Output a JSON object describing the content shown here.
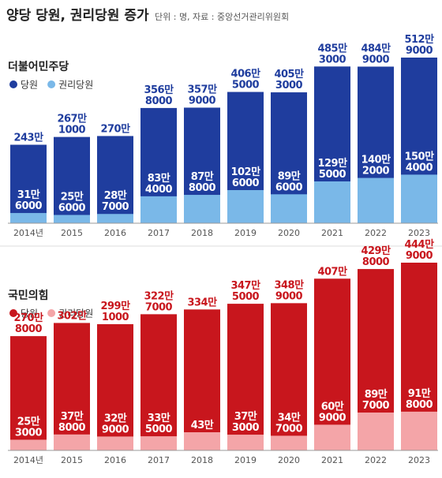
{
  "title": "양당 당원, 권리당원 증가",
  "note": "단위 : 명, 자료 : 중앙선거관리위원회",
  "chart_data": [
    {
      "type": "bar",
      "title": "더불어민주당",
      "categories": [
        "2014년",
        "2015",
        "2016",
        "2017",
        "2018",
        "2019",
        "2020",
        "2021",
        "2022",
        "2023"
      ],
      "series": [
        {
          "name": "당원",
          "color": "#1f3d9e",
          "values": [
            2430000,
            2671000,
            2700000,
            3568000,
            3579000,
            4065000,
            4053000,
            4853000,
            4849000,
            5129000
          ],
          "value_labels": [
            [
              "243만"
            ],
            [
              "267만",
              "1000"
            ],
            [
              "270만"
            ],
            [
              "356만",
              "8000"
            ],
            [
              "357만",
              "9000"
            ],
            [
              "406만",
              "5000"
            ],
            [
              "405만",
              "3000"
            ],
            [
              "485만",
              "3000"
            ],
            [
              "484만",
              "9000"
            ],
            [
              "512만",
              "9000"
            ]
          ]
        },
        {
          "name": "권리당원",
          "color": "#7ab8e8",
          "values": [
            316000,
            256000,
            287000,
            834000,
            878000,
            1026000,
            896000,
            1295000,
            1402000,
            1504000
          ],
          "value_labels": [
            [
              "31만",
              "6000"
            ],
            [
              "25만",
              "6000"
            ],
            [
              "28만",
              "7000"
            ],
            [
              "83만",
              "4000"
            ],
            [
              "87만",
              "8000"
            ],
            [
              "102만",
              "6000"
            ],
            [
              "89만",
              "6000"
            ],
            [
              "129만",
              "5000"
            ],
            [
              "140만",
              "2000"
            ],
            [
              "150만",
              "4000"
            ]
          ]
        }
      ]
    },
    {
      "type": "bar",
      "title": "국민의힘",
      "categories": [
        "2014년",
        "2015",
        "2016",
        "2017",
        "2018",
        "2019",
        "2020",
        "2021",
        "2022",
        "2023"
      ],
      "series": [
        {
          "name": "당원",
          "color": "#c8161d",
          "values": [
            2708000,
            3020000,
            2991000,
            3227000,
            3340000,
            3475000,
            3489000,
            4070000,
            4298000,
            4449000
          ],
          "value_labels": [
            [
              "270만",
              "8000"
            ],
            [
              "302만"
            ],
            [
              "299만",
              "1000"
            ],
            [
              "322만",
              "7000"
            ],
            [
              "334만"
            ],
            [
              "347만",
              "5000"
            ],
            [
              "348만",
              "9000"
            ],
            [
              "407만"
            ],
            [
              "429만",
              "8000"
            ],
            [
              "444만",
              "9000"
            ]
          ]
        },
        {
          "name": "권리당원",
          "color": "#f4a5a8",
          "values": [
            253000,
            378000,
            329000,
            335000,
            430000,
            373000,
            347000,
            609000,
            897000,
            918000
          ],
          "value_labels": [
            [
              "25만",
              "3000"
            ],
            [
              "37만",
              "8000"
            ],
            [
              "32만",
              "9000"
            ],
            [
              "33만",
              "5000"
            ],
            [
              "43만"
            ],
            [
              "37만",
              "3000"
            ],
            [
              "34만",
              "7000"
            ],
            [
              "60만",
              "9000"
            ],
            [
              "89만",
              "7000"
            ],
            [
              "91만",
              "8000"
            ]
          ]
        }
      ]
    }
  ]
}
